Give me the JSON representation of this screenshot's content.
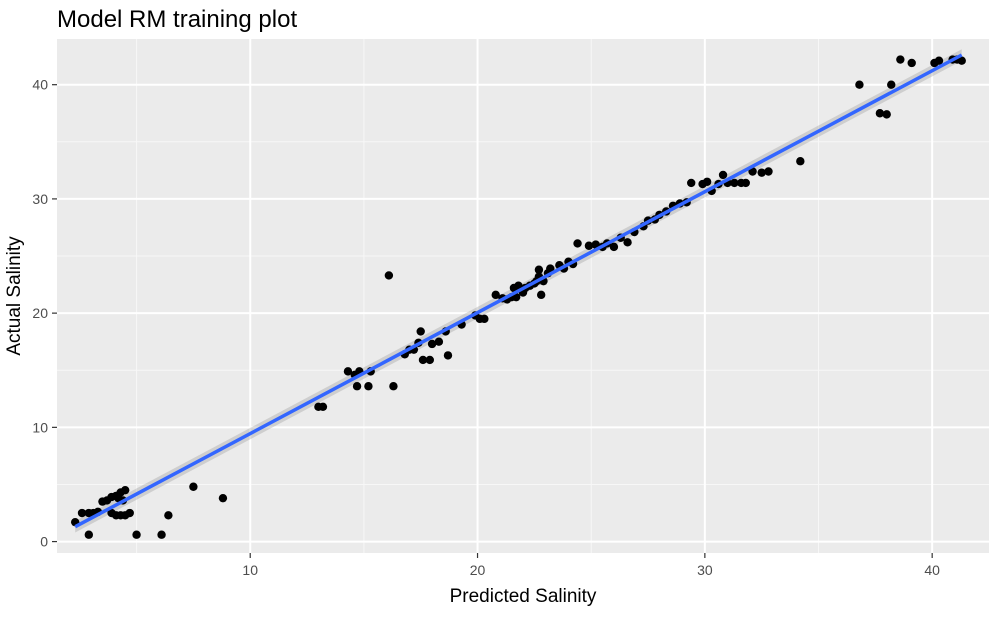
{
  "chart_data": {
    "type": "scatter",
    "title": "Model RM training plot",
    "xlabel": "Predicted Salinity",
    "ylabel": "Actual Salinity",
    "xlim": [
      1.5,
      42.5
    ],
    "ylim": [
      -1.0,
      44.0
    ],
    "x_ticks": [
      10,
      20,
      30,
      40
    ],
    "y_ticks": [
      0,
      10,
      20,
      30,
      40
    ],
    "x_minor_ticks": [
      5,
      15,
      25,
      35
    ],
    "y_minor_ticks": [
      5,
      15,
      25,
      35
    ],
    "grid": true,
    "colors": {
      "panel": "#ebebeb",
      "grid_major": "#ffffff",
      "points": "#000000",
      "fit_line": "#3366ff",
      "band": "#999999"
    },
    "series": [
      {
        "points": [
          [
            2.3,
            1.7
          ],
          [
            2.6,
            2.5
          ],
          [
            2.9,
            2.5
          ],
          [
            3.1,
            2.5
          ],
          [
            2.9,
            0.6
          ],
          [
            3.3,
            2.6
          ],
          [
            3.5,
            3.5
          ],
          [
            3.7,
            3.6
          ],
          [
            3.9,
            3.9
          ],
          [
            4.1,
            4.0
          ],
          [
            3.9,
            2.5
          ],
          [
            4.1,
            2.3
          ],
          [
            4.3,
            2.3
          ],
          [
            4.5,
            2.3
          ],
          [
            4.7,
            2.5
          ],
          [
            4.2,
            3.8
          ],
          [
            4.3,
            4.3
          ],
          [
            4.5,
            4.5
          ],
          [
            4.4,
            3.6
          ],
          [
            5.0,
            0.6
          ],
          [
            6.1,
            0.6
          ],
          [
            6.4,
            2.3
          ],
          [
            7.5,
            4.8
          ],
          [
            8.8,
            3.8
          ],
          [
            13.0,
            11.8
          ],
          [
            13.2,
            11.8
          ],
          [
            14.3,
            14.9
          ],
          [
            14.6,
            14.6
          ],
          [
            14.8,
            14.9
          ],
          [
            14.7,
            13.6
          ],
          [
            15.2,
            13.6
          ],
          [
            15.3,
            14.9
          ],
          [
            16.1,
            23.3
          ],
          [
            16.3,
            13.6
          ],
          [
            16.8,
            16.4
          ],
          [
            17.0,
            16.8
          ],
          [
            17.2,
            16.8
          ],
          [
            17.4,
            17.4
          ],
          [
            17.5,
            18.4
          ],
          [
            17.6,
            15.9
          ],
          [
            17.9,
            15.9
          ],
          [
            18.0,
            17.3
          ],
          [
            18.3,
            17.5
          ],
          [
            18.6,
            18.4
          ],
          [
            18.7,
            16.3
          ],
          [
            19.3,
            19.0
          ],
          [
            19.9,
            19.8
          ],
          [
            20.1,
            19.5
          ],
          [
            20.3,
            19.5
          ],
          [
            20.8,
            21.6
          ],
          [
            21.1,
            21.3
          ],
          [
            21.3,
            21.2
          ],
          [
            21.5,
            21.4
          ],
          [
            21.7,
            21.4
          ],
          [
            21.6,
            22.2
          ],
          [
            21.8,
            22.4
          ],
          [
            22.0,
            21.8
          ],
          [
            22.1,
            22.2
          ],
          [
            22.3,
            22.4
          ],
          [
            22.5,
            22.6
          ],
          [
            22.6,
            22.8
          ],
          [
            22.7,
            23.2
          ],
          [
            22.8,
            21.6
          ],
          [
            22.7,
            23.8
          ],
          [
            22.9,
            22.8
          ],
          [
            23.1,
            23.5
          ],
          [
            23.2,
            23.9
          ],
          [
            23.6,
            24.2
          ],
          [
            23.8,
            23.9
          ],
          [
            24.0,
            24.5
          ],
          [
            24.2,
            24.3
          ],
          [
            24.4,
            26.1
          ],
          [
            24.9,
            25.9
          ],
          [
            25.2,
            26.0
          ],
          [
            25.5,
            25.8
          ],
          [
            25.7,
            26.1
          ],
          [
            26.0,
            25.8
          ],
          [
            26.3,
            26.6
          ],
          [
            26.6,
            26.2
          ],
          [
            26.9,
            27.1
          ],
          [
            27.3,
            27.6
          ],
          [
            27.5,
            28.1
          ],
          [
            27.8,
            28.2
          ],
          [
            28.0,
            28.6
          ],
          [
            28.3,
            28.9
          ],
          [
            28.6,
            29.4
          ],
          [
            28.9,
            29.6
          ],
          [
            29.2,
            29.7
          ],
          [
            29.4,
            31.4
          ],
          [
            29.9,
            31.3
          ],
          [
            30.1,
            31.5
          ],
          [
            30.3,
            30.7
          ],
          [
            30.6,
            31.3
          ],
          [
            30.8,
            32.1
          ],
          [
            31.0,
            31.4
          ],
          [
            31.3,
            31.4
          ],
          [
            31.6,
            31.4
          ],
          [
            31.8,
            31.4
          ],
          [
            32.1,
            32.4
          ],
          [
            32.5,
            32.3
          ],
          [
            32.8,
            32.4
          ],
          [
            34.2,
            33.3
          ],
          [
            36.8,
            40.0
          ],
          [
            37.7,
            37.5
          ],
          [
            38.0,
            37.4
          ],
          [
            38.2,
            40.0
          ],
          [
            38.6,
            42.2
          ],
          [
            39.1,
            41.9
          ],
          [
            40.1,
            41.9
          ],
          [
            40.3,
            42.1
          ],
          [
            40.9,
            42.2
          ],
          [
            41.1,
            42.2
          ],
          [
            41.3,
            42.1
          ]
        ]
      }
    ],
    "fit_line": {
      "x": [
        2.3,
        41.3
      ],
      "y": [
        1.3,
        42.6
      ]
    }
  }
}
